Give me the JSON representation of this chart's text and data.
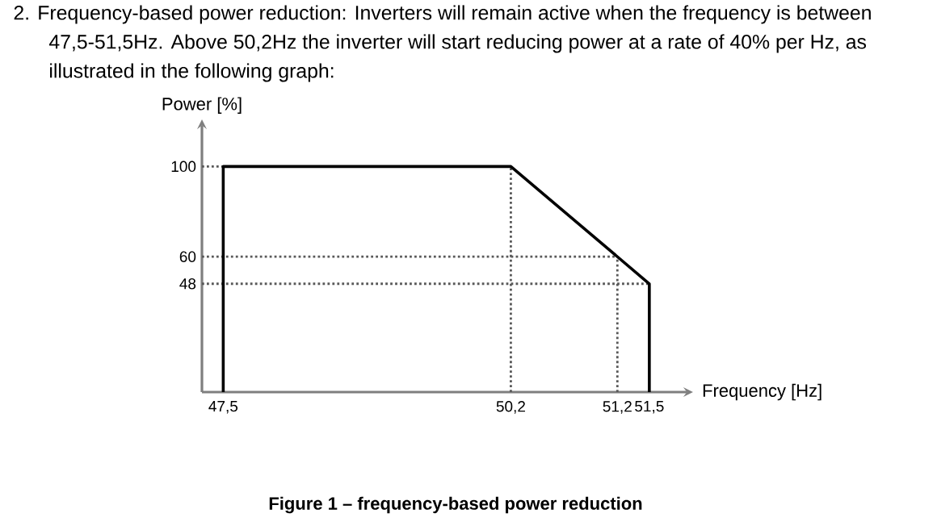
{
  "chart_data": {
    "type": "line",
    "title": "2. Frequency-based power reduction: Inverters will remain active when the frequency is between 47,5-51,5Hz. Above 50,2Hz the inverter will start reducing power at a rate of 40% per Hz, as illustrated in the following graph:",
    "xlabel": "Frequency [Hz]",
    "ylabel": "Power [%]",
    "series": [
      {
        "x": [
          47.5,
          47.5,
          50.2,
          51.5,
          51.5
        ],
        "values": [
          0,
          100,
          100,
          48,
          0
        ],
        "color": "#000000"
      }
    ],
    "xlim": [
      47.3,
      51.85
    ],
    "ylim": [
      0,
      118
    ],
    "xticks": [
      {
        "value": 47.5,
        "label": "47,5"
      },
      {
        "value": 50.2,
        "label": "50,2"
      },
      {
        "value": 51.2,
        "label": "51,2"
      },
      {
        "value": 51.5,
        "label": "51,5"
      }
    ],
    "yticks": [
      48,
      60,
      100
    ],
    "ref_lines": [
      {
        "axis": "y",
        "value": 100,
        "line_style": "dotted",
        "color": "#595959"
      },
      {
        "axis": "y",
        "value": 60,
        "line_style": "dotted",
        "color": "#595959"
      },
      {
        "axis": "y",
        "value": 48,
        "line_style": "dotted",
        "color": "#595959"
      },
      {
        "axis": "x",
        "value": 50.2,
        "line_style": "dotted",
        "color": "#595959"
      },
      {
        "axis": "x",
        "value": 51.2,
        "line_style": "dotted",
        "color": "#595959"
      }
    ],
    "annotations": [
      "Figure 1 – frequency-based power reduction"
    ],
    "line_style": "solid"
  }
}
